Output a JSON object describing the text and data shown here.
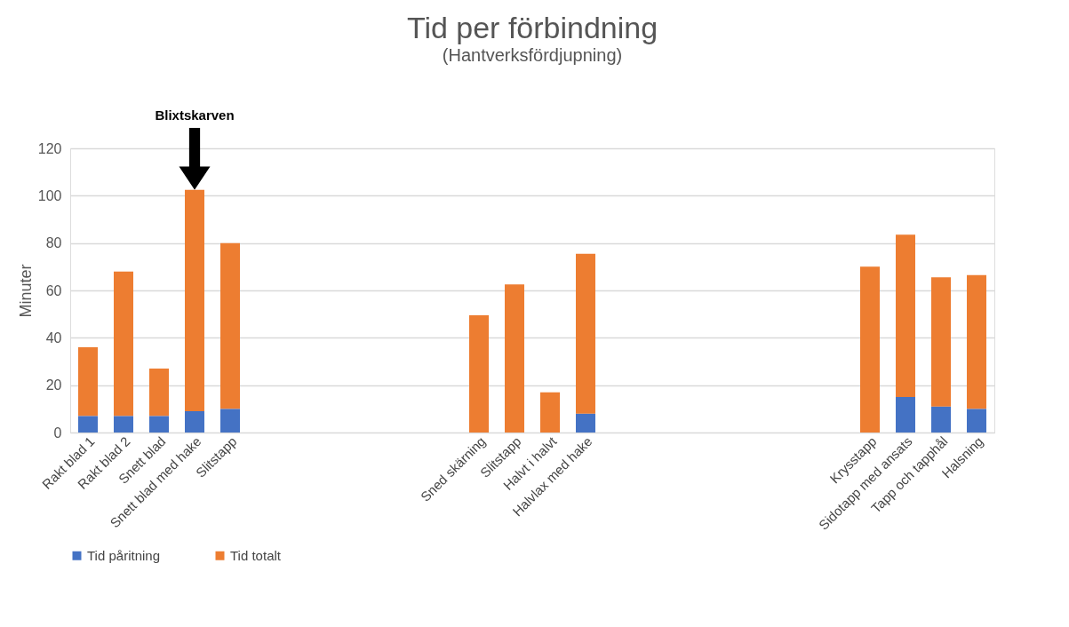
{
  "chart_data": {
    "type": "bar",
    "title": "Tid per förbindning",
    "subtitle": "(Hantverksfördjupning)",
    "ylabel": "Minuter",
    "categories": [
      "Rakt blad 1",
      "Rakt blad 2",
      "Snett blad",
      "Snett blad med hake",
      "Slitstapp",
      null,
      null,
      null,
      null,
      null,
      null,
      "Sned skärning",
      "Slitstapp",
      "Halvt i halvt",
      "Halvlax med hake",
      null,
      null,
      null,
      null,
      null,
      null,
      null,
      "Krysstapp",
      "Sidotapp med ansats",
      "Tapp och tapphål",
      "Halsning"
    ],
    "series": [
      {
        "name": "Tid påritning",
        "color": "#4472c4",
        "values": [
          7,
          7,
          7,
          9,
          10,
          null,
          null,
          null,
          null,
          null,
          null,
          null,
          null,
          null,
          8,
          null,
          null,
          null,
          null,
          null,
          null,
          null,
          null,
          15,
          11,
          10
        ]
      },
      {
        "name": "Tid totalt",
        "color": "#ed7d31",
        "values": [
          29,
          61,
          20,
          93.5,
          70,
          null,
          null,
          null,
          null,
          null,
          null,
          49.5,
          62.5,
          17,
          67.5,
          null,
          null,
          null,
          null,
          null,
          null,
          null,
          70,
          68.5,
          54.5,
          56.5
        ]
      }
    ],
    "stacked": true,
    "ylim": [
      0,
      120
    ],
    "yticks": [
      0,
      20,
      40,
      60,
      80,
      100,
      120
    ],
    "grid": "y",
    "legend": "bottom",
    "annotations": [
      "Blixtskarven"
    ]
  }
}
